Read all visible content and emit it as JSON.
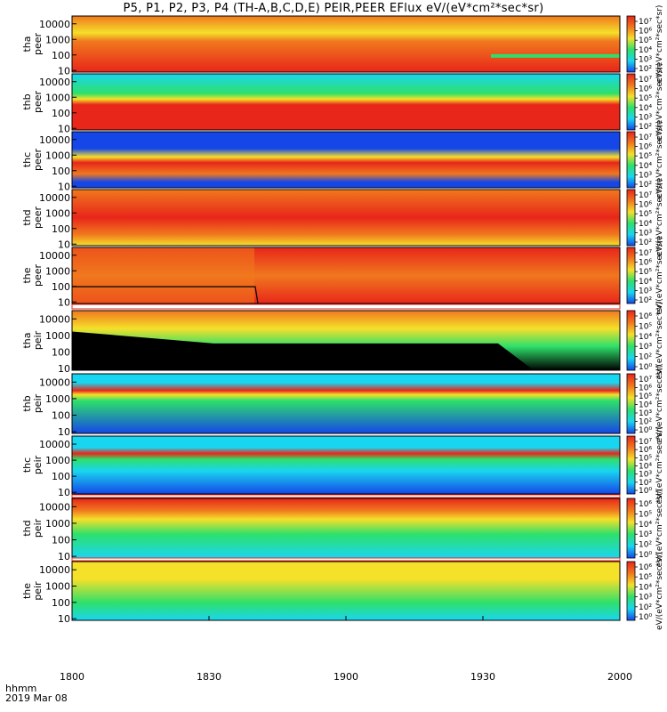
{
  "title": "P5, P1, P2, P3, P4 (TH-A,B,C,D,E) PEIR,PEER EFlux eV/(eV*cm²*sec*sr)",
  "time_label": "hhmm",
  "date_label": "2019 Mar 08",
  "colors": {
    "red": "#e8261a",
    "orange": "#f0781e",
    "yellow": "#f5e02a",
    "green": "#2ee06a",
    "cyan": "#19d6f0",
    "blue": "#1546e8",
    "black": "#000000"
  },
  "chart_data": {
    "type": "heatmap",
    "x_ticks": [
      "1800",
      "1830",
      "1900",
      "1930",
      "2000"
    ],
    "x_range": [
      "18:00",
      "20:00"
    ],
    "y_scale": "log",
    "y_ticks": [
      "10",
      "100",
      "1000",
      "10000"
    ],
    "panels": [
      {
        "label": "tha\npeer",
        "l1": "tha",
        "l2": "peer",
        "cbar": [
          "10⁷",
          "10⁶",
          "10⁵",
          "10⁴",
          "10³",
          "10²"
        ],
        "cbar_title": "eV/(eV*cm²*sec*sr)"
      },
      {
        "label": "thb\npeer",
        "l1": "thb",
        "l2": "peer",
        "cbar": [
          "10⁷",
          "10⁶",
          "10⁵",
          "10⁴",
          "10³",
          "10²"
        ],
        "cbar_title": "eV/(eV*cm²*sec*sr)"
      },
      {
        "label": "thc\npeer",
        "l1": "thc",
        "l2": "peer",
        "cbar": [
          "10⁷",
          "10⁶",
          "10⁵",
          "10⁴",
          "10³",
          "10²"
        ],
        "cbar_title": "eV/(eV*cm²*sec*sr)"
      },
      {
        "label": "thd\npeer",
        "l1": "thd",
        "l2": "peer",
        "cbar": [
          "10⁷",
          "10⁶",
          "10⁵",
          "10⁴",
          "10³",
          "10²"
        ],
        "cbar_title": "eV/(eV*cm²*sec*sr)"
      },
      {
        "label": "the\npeer",
        "l1": "the",
        "l2": "peer",
        "cbar": [
          "10⁷",
          "10⁶",
          "10⁵",
          "10⁴",
          "10³",
          "10²"
        ],
        "cbar_title": "eV/(eV*cm²*sec*sr)"
      },
      {
        "label": "tha\npeir",
        "l1": "tha",
        "l2": "peir",
        "cbar": [
          "10⁶",
          "10⁵",
          "10⁴",
          "10³",
          "10²",
          "10⁰"
        ],
        "cbar_title": "eV/(eV*cm²*sec*sr)"
      },
      {
        "label": "thb\npeir",
        "l1": "thb",
        "l2": "peir",
        "cbar": [
          "10⁷",
          "10⁶",
          "10⁵",
          "10⁴",
          "10³",
          "10²",
          "10⁰"
        ],
        "cbar_title": "eV/(eV*cm²*sec*sr)"
      },
      {
        "label": "thc\npeir",
        "l1": "thc",
        "l2": "peir",
        "cbar": [
          "10⁷",
          "10⁶",
          "10⁵",
          "10⁴",
          "10³",
          "10²",
          "10⁰"
        ],
        "cbar_title": "eV/(eV*cm²*sec*sr)"
      },
      {
        "label": "thd\npeir",
        "l1": "thd",
        "l2": "peir",
        "cbar": [
          "10⁶",
          "10⁵",
          "10⁴",
          "10³",
          "10²",
          "10⁰"
        ],
        "cbar_title": "eV/(eV*cm²*sec*sr)"
      },
      {
        "label": "the\npeir",
        "l1": "the",
        "l2": "peir",
        "cbar": [
          "10⁶",
          "10⁵",
          "10⁴",
          "10³",
          "10²",
          "10⁰"
        ],
        "cbar_title": "eV/(eV*cm²*sec*sr)"
      }
    ],
    "bottom_cbar_title": "[eV/(cm²-s-sr-eV)] [eV/(cm²-s-sr-eV)]"
  }
}
